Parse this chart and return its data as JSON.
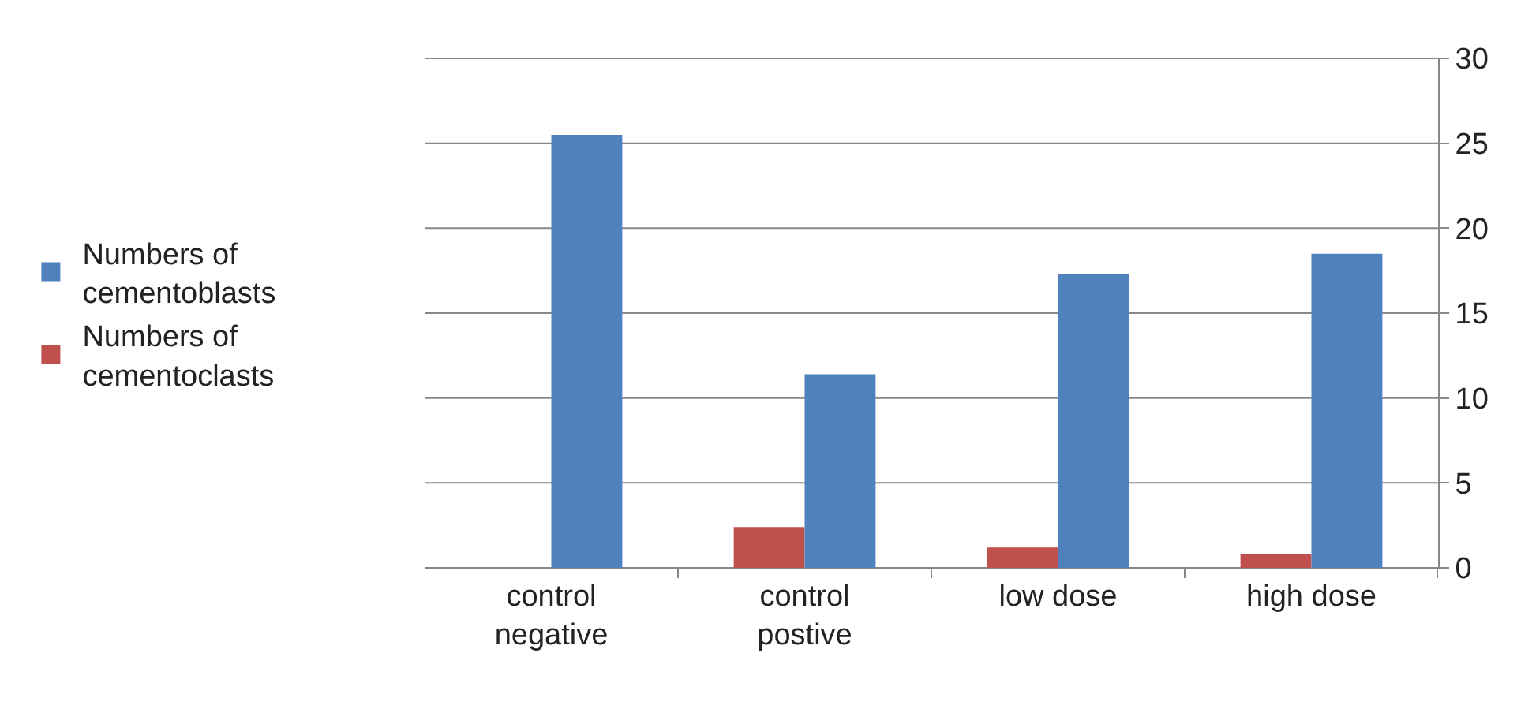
{
  "chart_data": {
    "type": "bar",
    "categories": [
      "control negative",
      "control postive",
      "low dose",
      "high dose"
    ],
    "series": [
      {
        "name": "Numbers of cementoclasts",
        "color": "#c0504d",
        "values": [
          null,
          2.4,
          1.2,
          0.8
        ]
      },
      {
        "name": "Numbers of cementoblasts",
        "color": "#4f81bd",
        "values": [
          25.5,
          11.4,
          17.3,
          18.5
        ]
      }
    ],
    "ylim": [
      0,
      30
    ],
    "yticks": [
      0,
      5,
      10,
      15,
      20,
      25,
      30
    ],
    "grid": "y",
    "legend": "left"
  }
}
